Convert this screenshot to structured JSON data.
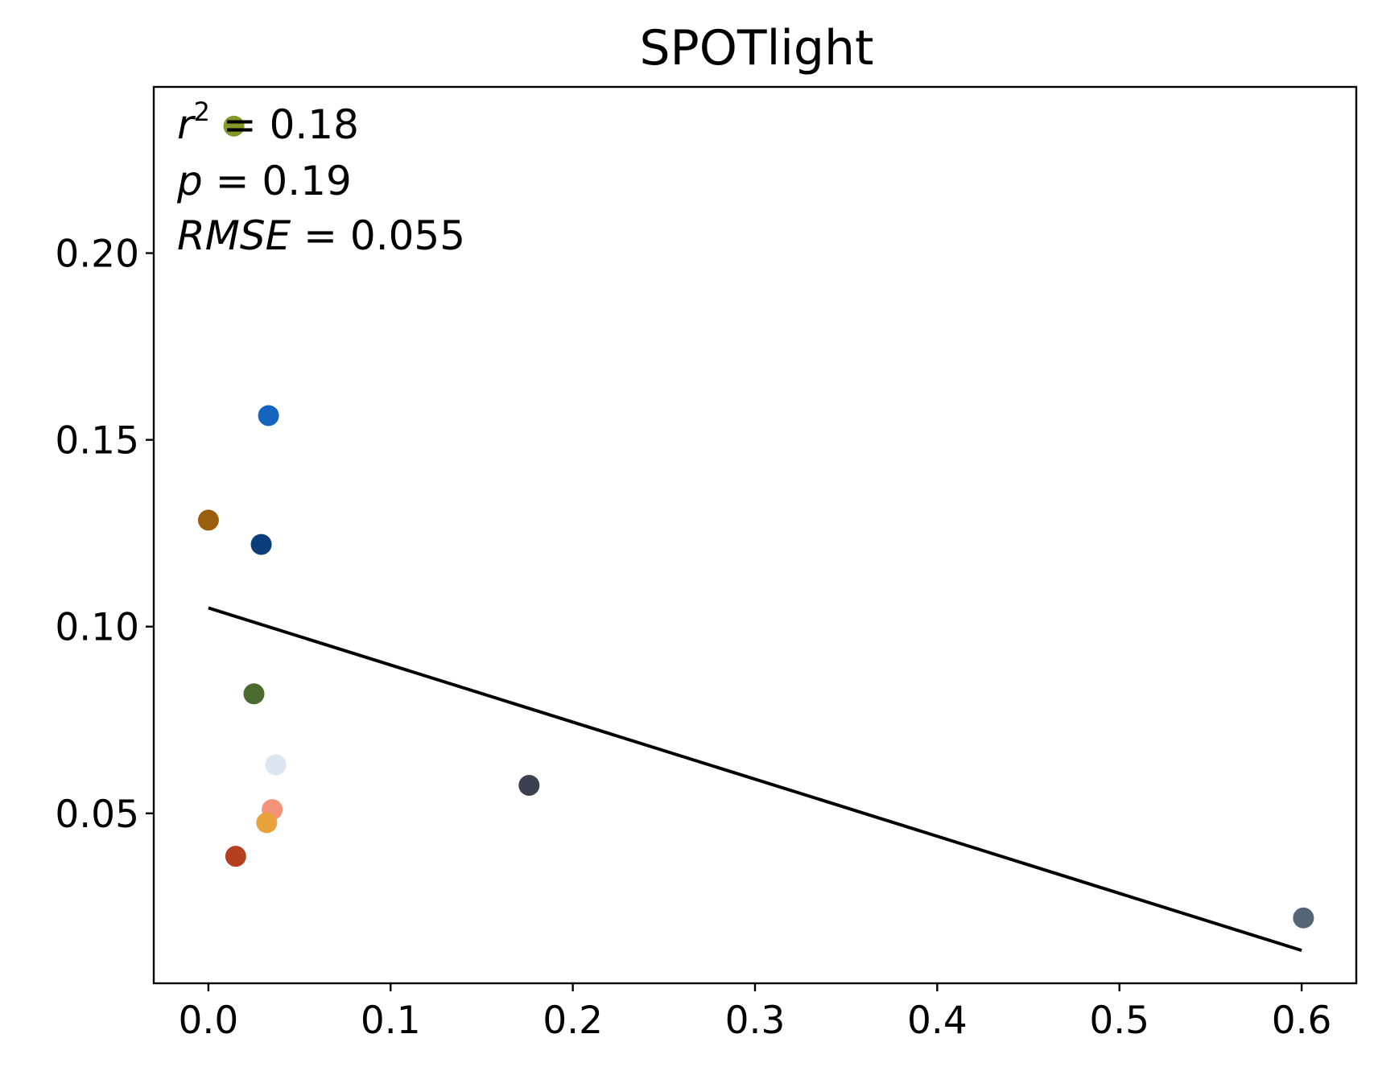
{
  "chart_data": {
    "type": "scatter",
    "title": "SPOTlight",
    "xlabel": "",
    "ylabel": "",
    "xlim": [
      -0.03,
      0.63
    ],
    "ylim": [
      0.0045,
      0.2445
    ],
    "x_ticks": [
      0.0,
      0.1,
      0.2,
      0.3,
      0.4,
      0.5,
      0.6
    ],
    "x_tick_labels": [
      "0.0",
      "0.1",
      "0.2",
      "0.3",
      "0.4",
      "0.5",
      "0.6"
    ],
    "y_ticks": [
      0.05,
      0.1,
      0.15,
      0.2
    ],
    "y_tick_labels": [
      "0.05",
      "0.10",
      "0.15",
      "0.20"
    ],
    "grid": false,
    "points": [
      {
        "x": 0.014,
        "y": 0.234,
        "color": "#7f9a2a"
      },
      {
        "x": 0.033,
        "y": 0.1565,
        "color": "#1565c0"
      },
      {
        "x": 0.0,
        "y": 0.1285,
        "color": "#9a5f0c"
      },
      {
        "x": 0.029,
        "y": 0.122,
        "color": "#0a3d7a"
      },
      {
        "x": 0.025,
        "y": 0.082,
        "color": "#4a6b30"
      },
      {
        "x": 0.037,
        "y": 0.063,
        "color": "#dce6f0"
      },
      {
        "x": 0.176,
        "y": 0.0575,
        "color": "#3a4250"
      },
      {
        "x": 0.035,
        "y": 0.051,
        "color": "#f4937a"
      },
      {
        "x": 0.032,
        "y": 0.0475,
        "color": "#e8a33d"
      },
      {
        "x": 0.015,
        "y": 0.0385,
        "color": "#b5401e"
      },
      {
        "x": 0.601,
        "y": 0.022,
        "color": "#566575"
      }
    ],
    "fit_line": {
      "x": [
        0.0,
        0.6
      ],
      "y": [
        0.105,
        0.0133
      ],
      "color": "#000000"
    },
    "annotations": {
      "r2_symbol": "r",
      "r2_exponent": "2",
      "r2_text": " = 0.18",
      "p_symbol": "p",
      "p_text": " = 0.19",
      "rmse_symbol": "RMSE",
      "rmse_text": " = 0.055"
    }
  }
}
